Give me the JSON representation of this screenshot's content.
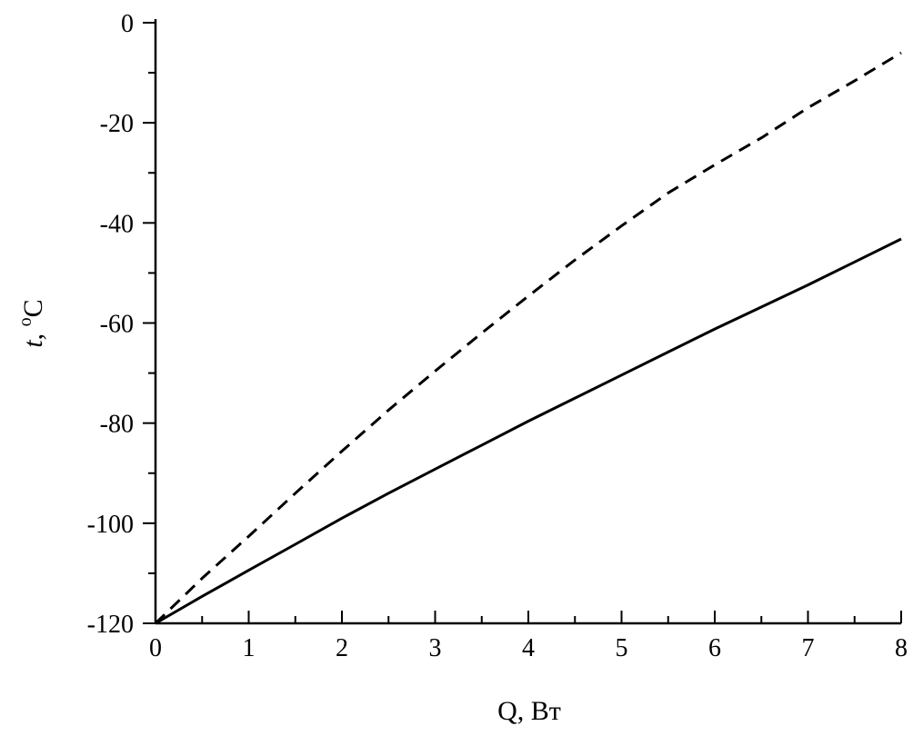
{
  "chart_data": {
    "type": "line",
    "xlabel": "Q, Вт",
    "ylabel_var": "t",
    "ylabel_sep": ", ",
    "ylabel_sup": "o",
    "ylabel_unit": "C",
    "xlim": [
      0,
      8
    ],
    "ylim": [
      -120,
      0
    ],
    "xticks": [
      0,
      1,
      2,
      3,
      4,
      5,
      6,
      7,
      8
    ],
    "yticks": [
      0,
      -20,
      -40,
      -60,
      -80,
      -100,
      -120
    ],
    "grid": false,
    "series": [
      {
        "style": "solid",
        "color": "#000000",
        "x": [
          0,
          0.5,
          1,
          1.5,
          2,
          2.5,
          3,
          3.5,
          4,
          4.5,
          5,
          5.5,
          6,
          6.5,
          7,
          7.5,
          8
        ],
        "y": [
          -120,
          -114.6,
          -109.4,
          -104.2,
          -99.0,
          -94.0,
          -89.2,
          -84.4,
          -79.6,
          -75.0,
          -70.4,
          -65.8,
          -61.2,
          -56.8,
          -52.4,
          -47.8,
          -43.2
        ]
      },
      {
        "style": "dashed",
        "color": "#000000",
        "x": [
          0,
          0.5,
          1,
          1.5,
          2,
          2.5,
          3,
          3.5,
          4,
          4.5,
          5,
          5.5,
          6,
          6.5,
          7,
          7.5,
          8
        ],
        "y": [
          -120,
          -111.0,
          -102.6,
          -94.0,
          -85.6,
          -77.4,
          -69.6,
          -62.0,
          -54.6,
          -47.4,
          -40.6,
          -34.0,
          -28.4,
          -23.0,
          -17.0,
          -11.6,
          -6.0
        ]
      }
    ]
  }
}
